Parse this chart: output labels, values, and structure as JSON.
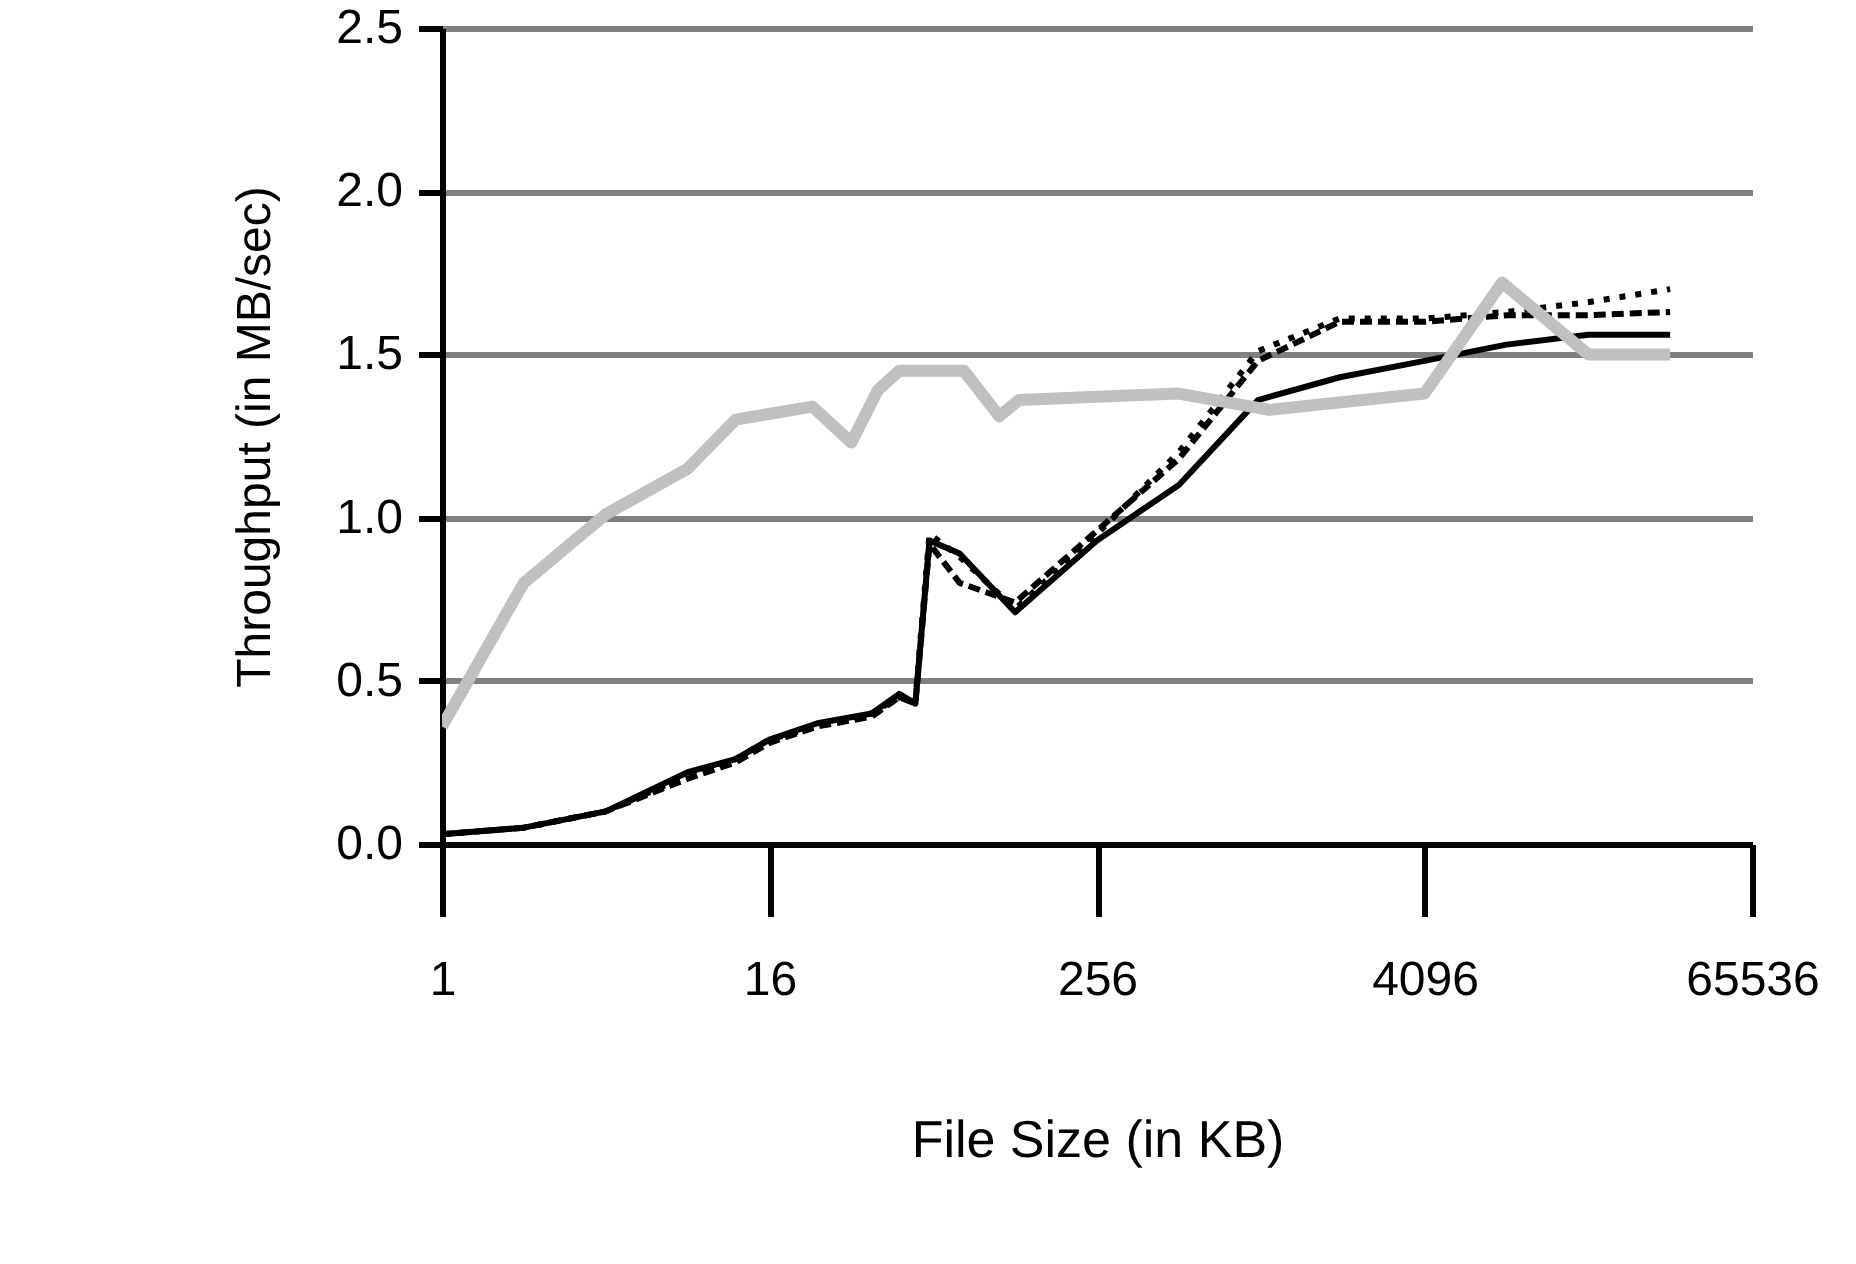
{
  "chart_data": {
    "type": "line",
    "xlabel": "File Size (in KB)",
    "ylabel": "Throughput (in MB/sec)",
    "log": "x",
    "grid": "y",
    "xlim": [
      1,
      65536
    ],
    "xticks": [
      1,
      16,
      256,
      4096,
      65536
    ],
    "ylim": [
      0,
      2.5
    ],
    "yticks": [
      {
        "value": 0,
        "label": "0.0"
      },
      {
        "value": 0.5,
        "label": "0.5"
      },
      {
        "value": 1,
        "label": "1.0"
      },
      {
        "value": 1.5,
        "label": "1.5"
      },
      {
        "value": 2,
        "label": "2.0"
      },
      {
        "value": 2.5,
        "label": "2.5"
      }
    ],
    "x": [
      1,
      2,
      4,
      8,
      12,
      16,
      24,
      38,
      48,
      55,
      62,
      80,
      128,
      256,
      512,
      1000,
      2000,
      4096,
      8192,
      16384,
      32768
    ],
    "series": [
      {
        "color": "#000000",
        "line_style": "solid",
        "values": [
          0.03,
          0.05,
          0.1,
          0.22,
          0.26,
          0.32,
          0.37,
          0.4,
          0.46,
          0.43,
          0.93,
          0.89,
          0.71,
          0.93,
          1.1,
          1.36,
          1.43,
          1.48,
          1.53,
          1.56,
          1.56
        ]
      },
      {
        "color": "#000000",
        "line_style": "dashed",
        "values": [
          0.03,
          0.05,
          0.1,
          0.2,
          0.25,
          0.31,
          0.36,
          0.39,
          0.45,
          0.43,
          0.92,
          0.8,
          0.74,
          0.96,
          1.18,
          1.48,
          1.6,
          1.6,
          1.62,
          1.62,
          1.63
        ]
      },
      {
        "color": "#000000",
        "line_style": "dotted",
        "values": [
          0.03,
          0.05,
          0.1,
          0.21,
          0.26,
          0.32,
          0.36,
          0.4,
          0.45,
          0.44,
          0.95,
          0.88,
          0.72,
          0.95,
          1.2,
          1.51,
          1.61,
          1.61,
          1.63,
          1.66,
          1.7
        ]
      },
      {
        "color": "#c0c0c0",
        "line_style": "solid",
        "x": [
          1,
          2,
          4,
          8,
          12,
          23,
          32,
          40,
          48,
          83,
          112,
          132,
          256,
          512,
          1100,
          4096,
          7900,
          16384,
          32768
        ],
        "values": [
          0.36,
          0.8,
          1.01,
          1.15,
          1.3,
          1.34,
          1.23,
          1.39,
          1.45,
          1.45,
          1.31,
          1.36,
          1.37,
          1.38,
          1.33,
          1.38,
          1.72,
          1.5,
          1.5
        ]
      }
    ]
  }
}
